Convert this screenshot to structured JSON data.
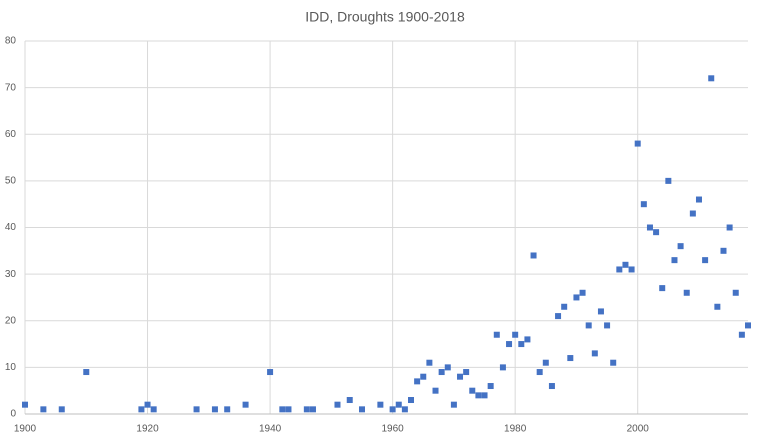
{
  "chart_data": {
    "type": "scatter",
    "title": "IDD, Droughts 1900-2018",
    "x": [
      1900,
      1903,
      1906,
      1910,
      1919,
      1920,
      1921,
      1928,
      1931,
      1933,
      1936,
      1940,
      1942,
      1943,
      1946,
      1947,
      1951,
      1953,
      1955,
      1958,
      1960,
      1961,
      1962,
      1963,
      1964,
      1965,
      1966,
      1967,
      1968,
      1969,
      1970,
      1971,
      1972,
      1973,
      1974,
      1975,
      1976,
      1977,
      1978,
      1979,
      1980,
      1981,
      1982,
      1983,
      1984,
      1985,
      1986,
      1987,
      1988,
      1989,
      1990,
      1991,
      1992,
      1993,
      1994,
      1995,
      1996,
      1997,
      1998,
      1999,
      2000,
      2001,
      2002,
      2003,
      2004,
      2005,
      2006,
      2007,
      2008,
      2009,
      2010,
      2011,
      2012,
      2013,
      2014,
      2015,
      2016,
      2017,
      2018
    ],
    "values": [
      2,
      1,
      1,
      9,
      1,
      2,
      1,
      1,
      1,
      1,
      2,
      9,
      1,
      1,
      1,
      1,
      2,
      3,
      1,
      2,
      1,
      2,
      1,
      3,
      7,
      8,
      11,
      5,
      9,
      10,
      2,
      8,
      9,
      5,
      4,
      4,
      6,
      17,
      10,
      15,
      17,
      15,
      16,
      34,
      9,
      11,
      6,
      21,
      23,
      12,
      25,
      26,
      19,
      13,
      22,
      19,
      11,
      31,
      32,
      31,
      58,
      45,
      40,
      39,
      27,
      50,
      33,
      36,
      26,
      43,
      46,
      33,
      72,
      23,
      35,
      40,
      26,
      17,
      19
    ],
    "color": "#4472c4",
    "xlim": [
      1900,
      2018
    ],
    "xticks": [
      1900,
      1920,
      1940,
      1960,
      1980,
      2000
    ],
    "ylim": [
      0,
      80
    ],
    "yticks": [
      0,
      10,
      20,
      30,
      40,
      50,
      60,
      70,
      80
    ],
    "grid": true
  }
}
